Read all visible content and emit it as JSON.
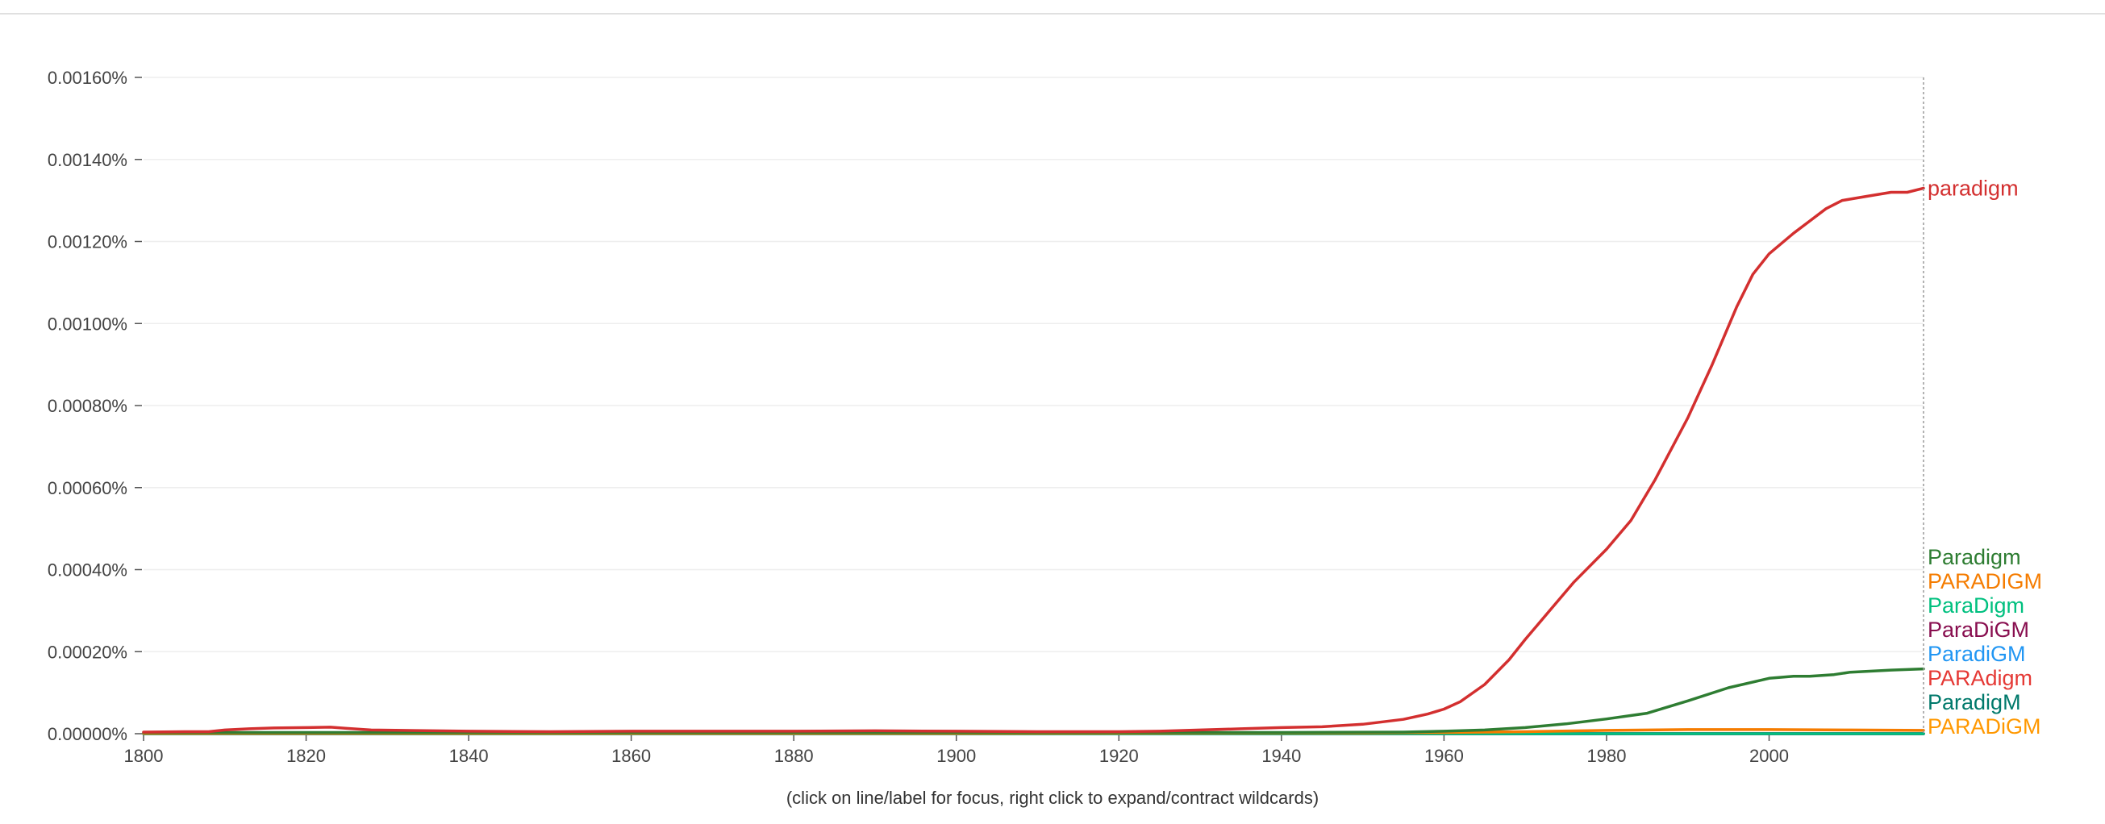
{
  "hint": "(click on line/label for focus, right click to expand/contract wildcards)",
  "chart_data": {
    "type": "line",
    "title": "",
    "xlabel": "",
    "ylabel": "",
    "xlim": [
      1800,
      2019
    ],
    "ylim": [
      0,
      0.0016
    ],
    "grid": true,
    "legend": "right",
    "x_ticks": [
      "1800",
      "1820",
      "1840",
      "1860",
      "1880",
      "1900",
      "1920",
      "1940",
      "1960",
      "1980",
      "2000"
    ],
    "y_ticks": [
      "0.00000%",
      "0.00020%",
      "0.00040%",
      "0.00060%",
      "0.00080%",
      "0.00100%",
      "0.00120%",
      "0.00140%",
      "0.00160%"
    ],
    "y_tick_values": [
      0,
      0.0002,
      0.0004,
      0.0006,
      0.0008,
      0.001,
      0.0012,
      0.0014,
      0.0016
    ],
    "series": [
      {
        "name": "paradigm",
        "color": "#d32f2f",
        "points": [
          [
            1800,
            4e-06
          ],
          [
            1805,
            5e-06
          ],
          [
            1808,
            5e-06
          ],
          [
            1810,
            9e-06
          ],
          [
            1813,
            1.2e-05
          ],
          [
            1816,
            1.4e-05
          ],
          [
            1820,
            1.5e-05
          ],
          [
            1823,
            1.6e-05
          ],
          [
            1825,
            1.3e-05
          ],
          [
            1828,
            9e-06
          ],
          [
            1832,
            8e-06
          ],
          [
            1840,
            6e-06
          ],
          [
            1850,
            5e-06
          ],
          [
            1860,
            6e-06
          ],
          [
            1870,
            6e-06
          ],
          [
            1880,
            6e-06
          ],
          [
            1890,
            7e-06
          ],
          [
            1900,
            6e-06
          ],
          [
            1910,
            5e-06
          ],
          [
            1920,
            5e-06
          ],
          [
            1925,
            6e-06
          ],
          [
            1930,
            9e-06
          ],
          [
            1935,
            1.2e-05
          ],
          [
            1940,
            1.5e-05
          ],
          [
            1945,
            1.7e-05
          ],
          [
            1950,
            2.3e-05
          ],
          [
            1955,
            3.5e-05
          ],
          [
            1958,
            4.8e-05
          ],
          [
            1960,
            6e-05
          ],
          [
            1962,
            7.8e-05
          ],
          [
            1965,
            0.00012
          ],
          [
            1968,
            0.00018
          ],
          [
            1970,
            0.00023
          ],
          [
            1973,
            0.0003
          ],
          [
            1976,
            0.00037
          ],
          [
            1980,
            0.00045
          ],
          [
            1983,
            0.00052
          ],
          [
            1986,
            0.00062
          ],
          [
            1990,
            0.00077
          ],
          [
            1993,
            0.0009
          ],
          [
            1996,
            0.00104
          ],
          [
            1998,
            0.00112
          ],
          [
            2000,
            0.00117
          ],
          [
            2003,
            0.00122
          ],
          [
            2005,
            0.00125
          ],
          [
            2007,
            0.00128
          ],
          [
            2009,
            0.0013
          ],
          [
            2012,
            0.00131
          ],
          [
            2015,
            0.00132
          ],
          [
            2017,
            0.00132
          ],
          [
            2019,
            0.00133
          ]
        ]
      },
      {
        "name": "Paradigm",
        "color": "#2e7d32",
        "points": [
          [
            1800,
            3e-06
          ],
          [
            1850,
            3e-06
          ],
          [
            1900,
            3e-06
          ],
          [
            1940,
            3e-06
          ],
          [
            1955,
            4e-06
          ],
          [
            1960,
            6e-06
          ],
          [
            1965,
            9e-06
          ],
          [
            1970,
            1.5e-05
          ],
          [
            1975,
            2.4e-05
          ],
          [
            1980,
            3.6e-05
          ],
          [
            1985,
            5e-05
          ],
          [
            1990,
            8e-05
          ],
          [
            1995,
            0.000112
          ],
          [
            2000,
            0.000135
          ],
          [
            2003,
            0.00014
          ],
          [
            2005,
            0.00014
          ],
          [
            2008,
            0.000144
          ],
          [
            2010,
            0.00015
          ],
          [
            2015,
            0.000155
          ],
          [
            2019,
            0.000158
          ]
        ]
      },
      {
        "name": "PARADIGM",
        "color": "#f57c00",
        "points": [
          [
            1800,
            1e-06
          ],
          [
            1900,
            1e-06
          ],
          [
            1950,
            2e-06
          ],
          [
            1960,
            3e-06
          ],
          [
            1970,
            5e-06
          ],
          [
            1980,
            8e-06
          ],
          [
            1990,
            1e-05
          ],
          [
            2000,
            1e-05
          ],
          [
            2010,
            9e-06
          ],
          [
            2019,
            8e-06
          ]
        ]
      },
      {
        "name": "ParaDigm",
        "color": "#00c07f",
        "points": [
          [
            1800,
            0
          ],
          [
            2019,
            0
          ]
        ]
      },
      {
        "name": "ParaDiGM",
        "color": "#880e4f",
        "points": [
          [
            1800,
            0
          ],
          [
            2019,
            0
          ]
        ]
      },
      {
        "name": "ParadiGM",
        "color": "#2196f3",
        "points": [
          [
            1800,
            0
          ],
          [
            2019,
            0
          ]
        ]
      },
      {
        "name": "PARAdigm",
        "color": "#e53935",
        "points": [
          [
            1800,
            0
          ],
          [
            2019,
            0
          ]
        ]
      },
      {
        "name": "ParadigM",
        "color": "#00796b",
        "points": [
          [
            1800,
            0
          ],
          [
            2019,
            0
          ]
        ]
      },
      {
        "name": "PARADiGM",
        "color": "#ff9800",
        "points": [
          [
            1800,
            0
          ],
          [
            2019,
            0
          ]
        ]
      }
    ]
  }
}
